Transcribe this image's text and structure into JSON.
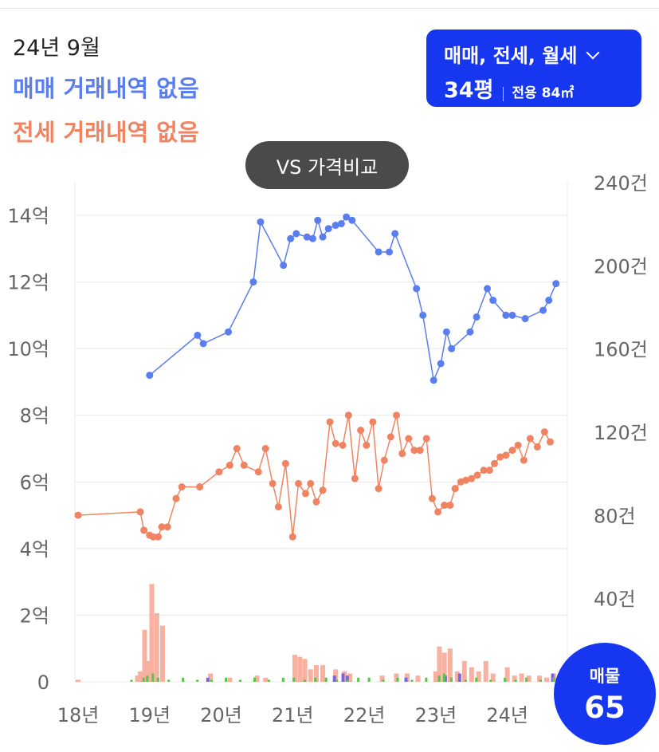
{
  "header": {
    "date": "24년 9월",
    "sale_status": "매매 거래내역 없음",
    "rent_status": "전세 거래내역 없음"
  },
  "filter": {
    "trade_types": "매매, 전세, 월세",
    "size_main": "34평",
    "size_sub": "전용 84㎡"
  },
  "compare_button": "VS 가격비교",
  "listing_badge": {
    "label": "매물",
    "value": "65"
  },
  "colors": {
    "sale": "#5a7ef0",
    "rent": "#f08462",
    "rent_bar": "#f8b0a0",
    "sale_bar": "#7b68d8",
    "monthly_bar": "#5cc24d",
    "accent": "#1736f0",
    "grid": "#e8e8e8"
  },
  "chart_data": {
    "type": "line",
    "x_ticks": [
      {
        "label": "18년",
        "value": 2018.0
      },
      {
        "label": "19년",
        "value": 2019.0
      },
      {
        "label": "20년",
        "value": 2020.0
      },
      {
        "label": "21년",
        "value": 2021.0
      },
      {
        "label": "22년",
        "value": 2022.0
      },
      {
        "label": "23년",
        "value": 2023.0
      },
      {
        "label": "24년",
        "value": 2024.0
      }
    ],
    "xlim": [
      2018.0,
      2024.75
    ],
    "y_left": {
      "ticks": [
        {
          "label": "0",
          "value": 0
        },
        {
          "label": "2억",
          "value": 2
        },
        {
          "label": "4억",
          "value": 4
        },
        {
          "label": "6억",
          "value": 6
        },
        {
          "label": "8억",
          "value": 8
        },
        {
          "label": "10억",
          "value": 10
        },
        {
          "label": "12억",
          "value": 12
        },
        {
          "label": "14억",
          "value": 14
        }
      ],
      "lim": [
        0,
        14
      ]
    },
    "y_right": {
      "ticks": [
        {
          "label": "40건",
          "value": 40
        },
        {
          "label": "80건",
          "value": 80
        },
        {
          "label": "120건",
          "value": 120
        },
        {
          "label": "160건",
          "value": 160
        },
        {
          "label": "200건",
          "value": 200
        },
        {
          "label": "240건",
          "value": 240
        }
      ],
      "lim": [
        0,
        240
      ]
    },
    "series": [
      {
        "key": "sale",
        "x": [
          2019.0,
          2019.67,
          2019.75,
          2020.1,
          2020.45,
          2020.55,
          2020.87,
          2020.97,
          2021.05,
          2021.2,
          2021.28,
          2021.35,
          2021.42,
          2021.5,
          2021.6,
          2021.68,
          2021.75,
          2021.83,
          2022.2,
          2022.35,
          2022.43,
          2022.73,
          2022.82,
          2022.97,
          2023.07,
          2023.15,
          2023.22,
          2023.48,
          2023.57,
          2023.72,
          2023.8,
          2023.98,
          2024.07,
          2024.25,
          2024.5,
          2024.58,
          2024.68
        ],
        "y": [
          9.2,
          10.4,
          10.15,
          10.5,
          12.0,
          13.8,
          12.5,
          13.3,
          13.45,
          13.35,
          13.3,
          13.85,
          13.35,
          13.6,
          13.7,
          13.75,
          13.95,
          13.85,
          12.9,
          12.9,
          13.45,
          11.8,
          11.0,
          9.05,
          9.55,
          10.5,
          10.0,
          10.5,
          10.95,
          11.8,
          11.45,
          11.0,
          11.0,
          10.9,
          11.15,
          11.45,
          11.95
        ]
      },
      {
        "key": "rent",
        "x": [
          2018.0,
          2018.87,
          2018.92,
          2019.0,
          2019.05,
          2019.12,
          2019.17,
          2019.25,
          2019.37,
          2019.45,
          2019.7,
          2019.97,
          2020.12,
          2020.22,
          2020.32,
          2020.52,
          2020.62,
          2020.72,
          2020.8,
          2020.9,
          2021.0,
          2021.08,
          2021.18,
          2021.25,
          2021.33,
          2021.42,
          2021.52,
          2021.6,
          2021.7,
          2021.78,
          2021.87,
          2021.95,
          2022.03,
          2022.12,
          2022.2,
          2022.28,
          2022.37,
          2022.45,
          2022.53,
          2022.62,
          2022.7,
          2022.78,
          2022.87,
          2022.95,
          2023.03,
          2023.12,
          2023.2,
          2023.27,
          2023.35,
          2023.42,
          2023.5,
          2023.58,
          2023.67,
          2023.75,
          2023.82,
          2023.9,
          2023.98,
          2024.07,
          2024.15,
          2024.23,
          2024.32,
          2024.42,
          2024.52,
          2024.6
        ],
        "y": [
          5.0,
          5.1,
          4.55,
          4.4,
          4.35,
          4.35,
          4.65,
          4.65,
          5.5,
          5.85,
          5.85,
          6.3,
          6.5,
          7.0,
          6.5,
          6.3,
          7.0,
          5.95,
          5.25,
          6.55,
          4.35,
          5.95,
          5.65,
          5.95,
          5.4,
          5.75,
          7.8,
          7.15,
          7.1,
          8.0,
          6.1,
          7.55,
          7.1,
          7.8,
          5.8,
          6.65,
          7.35,
          8.0,
          6.85,
          7.3,
          6.95,
          6.95,
          7.3,
          5.5,
          5.1,
          5.3,
          5.3,
          5.8,
          6.0,
          6.05,
          6.1,
          6.2,
          6.35,
          6.35,
          6.55,
          6.75,
          6.8,
          6.95,
          7.1,
          6.65,
          7.3,
          7.05,
          7.5,
          7.2
        ]
      }
    ],
    "volume_bars": {
      "rent": {
        "x": [
          2018.0,
          2018.83,
          2018.87,
          2018.93,
          2018.98,
          2019.03,
          2019.1,
          2019.18,
          2019.85,
          2020.12,
          2020.5,
          2020.62,
          2021.03,
          2021.1,
          2021.17,
          2021.25,
          2021.33,
          2021.42,
          2021.6,
          2021.72,
          2021.8,
          2022.25,
          2022.45,
          2022.6,
          2022.75,
          2023.0,
          2023.05,
          2023.12,
          2023.2,
          2023.3,
          2023.4,
          2023.5,
          2023.6,
          2023.7,
          2023.8,
          2024.0,
          2024.1,
          2024.2,
          2024.3,
          2024.45,
          2024.55,
          2024.65
        ],
        "counts": [
          1,
          3,
          5,
          25,
          10,
          47,
          33,
          27,
          4,
          2,
          3,
          2,
          13,
          12,
          11,
          6,
          8,
          8,
          6,
          5,
          4,
          3,
          4,
          4,
          3,
          5,
          17,
          14,
          16,
          5,
          10,
          7,
          5,
          10,
          4,
          7,
          3,
          4,
          3,
          3,
          2,
          4
        ]
      },
      "sale": {
        "x": [
          2019.78,
          2021.55,
          2021.67,
          2021.73,
          2022.55,
          2023.1,
          2023.3,
          2024.6
        ],
        "counts": [
          2,
          3,
          4,
          3,
          2,
          3,
          4,
          4
        ]
      },
      "monthly": {
        "x": [
          2018.78,
          2018.95,
          2019.0,
          2019.08,
          2019.15,
          2019.3,
          2019.5,
          2019.7,
          2019.9,
          2020.1,
          2020.3,
          2020.5,
          2020.7,
          2020.9,
          2021.05,
          2021.2,
          2021.35,
          2021.5,
          2021.65,
          2021.8,
          2021.95,
          2022.1,
          2022.3,
          2022.5,
          2022.7,
          2022.9,
          2023.08,
          2023.15,
          2023.25,
          2023.45,
          2023.6,
          2023.8,
          2024.0,
          2024.15,
          2024.3,
          2024.5,
          2024.68
        ],
        "counts": [
          1,
          2,
          3,
          4,
          2,
          1,
          2,
          1,
          1,
          2,
          1,
          2,
          1,
          2,
          2,
          1,
          2,
          2,
          1,
          1,
          2,
          2,
          1,
          2,
          1,
          2,
          3,
          4,
          2,
          1,
          2,
          1,
          2,
          1,
          2,
          1,
          2
        ]
      }
    }
  }
}
